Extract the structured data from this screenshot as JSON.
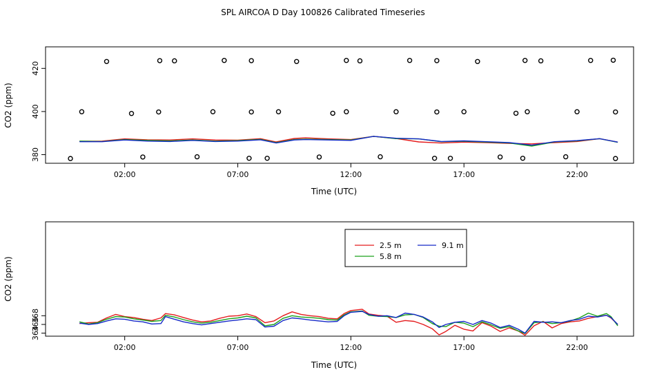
{
  "title": "SPL AIRCOA D  Day 100826  Calibrated Timeseries",
  "colors": {
    "s25": "#e41a1c",
    "s58": "#1aa01a",
    "s91": "#1428c8",
    "calib": "#000000"
  },
  "chart_data": [
    {
      "type": "line",
      "xlabel": "Time (UTC)",
      "ylabel": "CO2 (ppm)",
      "xlim": [
        -1.5,
        24.5
      ],
      "ylim": [
        376,
        430
      ],
      "xticks": [
        2,
        7,
        12,
        17,
        22
      ],
      "xtick_labels": [
        "02:00",
        "07:00",
        "12:00",
        "17:00",
        "22:00"
      ],
      "yticks": [
        380,
        400,
        420
      ],
      "ytick_labels": [
        "380",
        "400",
        "420"
      ],
      "series": [
        {
          "key": "s25",
          "x": [
            0,
            1,
            2,
            3,
            4,
            5,
            6,
            7,
            8,
            8.7,
            9.5,
            10,
            11,
            12,
            13,
            14,
            15,
            16,
            17,
            18,
            19,
            20,
            21,
            22,
            23,
            23.8
          ],
          "y": [
            386.2,
            386.3,
            387.3,
            386.9,
            386.8,
            387.3,
            386.8,
            386.7,
            387.4,
            385.9,
            387.5,
            387.8,
            387.3,
            387.0,
            388.5,
            387.5,
            385.9,
            385.4,
            385.8,
            385.6,
            385.2,
            385.0,
            385.6,
            386.1,
            387.4,
            385.8
          ]
        },
        {
          "key": "s58",
          "x": [
            0,
            1,
            2,
            3,
            4,
            5,
            6,
            7,
            8,
            8.7,
            9.5,
            10,
            11,
            12,
            13,
            14,
            15,
            16,
            17,
            18,
            19,
            20,
            21,
            22,
            23,
            23.8
          ],
          "y": [
            386.3,
            386.1,
            387.0,
            386.6,
            386.4,
            386.8,
            386.3,
            386.5,
            387.1,
            385.6,
            387.0,
            387.2,
            387.0,
            386.8,
            388.5,
            387.4,
            387.3,
            386.0,
            386.2,
            385.8,
            385.4,
            384.0,
            385.9,
            386.4,
            387.4,
            385.7
          ]
        },
        {
          "key": "s91",
          "x": [
            0,
            1,
            2,
            3,
            4,
            5,
            6,
            7,
            8,
            8.7,
            9.5,
            10,
            11,
            12,
            13,
            14,
            15,
            16,
            17,
            18,
            19,
            20,
            21,
            22,
            23,
            23.8
          ],
          "y": [
            386.0,
            386.0,
            386.8,
            386.3,
            386.1,
            386.6,
            386.1,
            386.3,
            386.9,
            385.4,
            386.8,
            387.0,
            386.8,
            386.6,
            388.5,
            387.6,
            387.3,
            386.1,
            386.4,
            386.0,
            385.6,
            384.4,
            386.0,
            386.5,
            387.4,
            385.8
          ]
        }
      ],
      "calibration_points": {
        "x": [
          -0.4,
          0.1,
          1.2,
          2.3,
          2.8,
          3.5,
          3.55,
          4.2,
          5.2,
          5.9,
          6.4,
          7.5,
          7.6,
          7.6,
          8.3,
          8.8,
          9.6,
          10.6,
          11.2,
          11.8,
          11.8,
          12.4,
          13.3,
          14.0,
          14.6,
          15.7,
          15.8,
          15.8,
          16.4,
          17.0,
          17.6,
          18.6,
          19.3,
          19.6,
          19.7,
          19.8,
          20.4,
          21.5,
          22.0,
          22.6,
          23.6,
          23.7,
          23.7
        ],
        "y": [
          378.2,
          399.9,
          423.2,
          399.1,
          378.9,
          399.8,
          423.6,
          423.5,
          379.0,
          399.9,
          423.7,
          378.3,
          423.6,
          399.8,
          378.3,
          399.9,
          423.2,
          378.9,
          399.2,
          423.7,
          399.9,
          423.5,
          379.0,
          399.9,
          423.7,
          378.3,
          423.6,
          399.8,
          378.3,
          399.9,
          423.2,
          378.9,
          399.2,
          378.3,
          423.7,
          399.9,
          423.5,
          379.0,
          399.9,
          423.7,
          423.8,
          399.8,
          378.2
        ]
      }
    },
    {
      "type": "line",
      "xlabel": "Time (UTC)",
      "ylabel": "CO2 (ppm)",
      "xlim": [
        -1.5,
        24.5
      ],
      "ylim": [
        363.3,
        389.6
      ],
      "xticks": [
        2,
        7,
        12,
        17,
        22
      ],
      "xtick_labels": [
        "02:00",
        "07:00",
        "12:00",
        "17:00",
        "22:00"
      ],
      "yticks": [
        364,
        366,
        368
      ],
      "ytick_labels": [
        "364",
        "366",
        "368"
      ],
      "legend": {
        "placement": "top-center",
        "entries": [
          {
            "key": "s25",
            "label": "2.5 m"
          },
          {
            "key": "s91",
            "label": "9.1 m"
          },
          {
            "key": "s58",
            "label": "5.8 m"
          }
        ]
      },
      "series": [
        {
          "key": "s25",
          "name": "2.5 m",
          "x": [
            0,
            0.4,
            0.8,
            1.2,
            1.6,
            2.0,
            2.4,
            2.8,
            3.2,
            3.6,
            3.8,
            4.2,
            4.6,
            5.0,
            5.4,
            5.8,
            6.2,
            6.6,
            7.0,
            7.4,
            7.8,
            8.2,
            8.6,
            9.0,
            9.4,
            9.8,
            10.2,
            10.6,
            11.0,
            11.4,
            11.7,
            12.0,
            12.5,
            12.8,
            13.2,
            13.6,
            14.0,
            14.4,
            14.8,
            15.2,
            15.6,
            15.9,
            16.2,
            16.6,
            17.0,
            17.4,
            17.8,
            18.2,
            18.6,
            19.0,
            19.4,
            19.7,
            20.1,
            20.5,
            20.9,
            21.3,
            21.7,
            22.1,
            22.5,
            22.9,
            23.3,
            23.5,
            23.8
          ],
          "y": [
            366.2,
            366.4,
            366.5,
            367.5,
            368.3,
            367.8,
            367.6,
            367.2,
            366.9,
            367.5,
            368.5,
            368.2,
            367.6,
            367.0,
            366.6,
            366.8,
            367.4,
            367.9,
            368.0,
            368.4,
            367.8,
            366.4,
            366.8,
            368.0,
            368.9,
            368.3,
            368.0,
            367.8,
            367.4,
            367.3,
            368.5,
            369.2,
            369.5,
            368.4,
            368.1,
            367.9,
            366.5,
            366.9,
            366.7,
            366.0,
            365.0,
            363.6,
            364.4,
            365.8,
            364.9,
            364.5,
            366.4,
            365.6,
            364.4,
            365.2,
            364.5,
            363.5,
            365.7,
            366.7,
            365.2,
            366.2,
            366.6,
            366.8,
            367.4,
            367.8,
            368.1,
            367.5,
            366.0
          ]
        },
        {
          "key": "s58",
          "name": "5.8 m",
          "x": [
            0,
            0.4,
            0.8,
            1.2,
            1.6,
            2.0,
            2.4,
            2.8,
            3.2,
            3.6,
            3.8,
            4.2,
            4.6,
            5.0,
            5.4,
            5.8,
            6.2,
            6.6,
            7.0,
            7.4,
            7.8,
            8.2,
            8.6,
            9.0,
            9.4,
            9.8,
            10.2,
            10.6,
            11.0,
            11.4,
            11.7,
            12.0,
            12.5,
            12.8,
            13.2,
            13.6,
            14.0,
            14.4,
            14.8,
            15.2,
            15.6,
            15.9,
            16.2,
            16.6,
            17.0,
            17.4,
            17.8,
            18.2,
            18.6,
            19.0,
            19.4,
            19.7,
            20.1,
            20.5,
            20.9,
            21.3,
            21.7,
            22.1,
            22.5,
            22.9,
            23.3,
            23.5,
            23.8
          ],
          "y": [
            366.6,
            366.1,
            366.4,
            367.2,
            367.8,
            367.7,
            367.3,
            367.0,
            366.7,
            366.9,
            368.1,
            367.7,
            367.1,
            366.6,
            366.3,
            366.5,
            366.9,
            367.3,
            367.5,
            367.9,
            367.5,
            365.7,
            366.0,
            367.4,
            368.0,
            367.7,
            367.6,
            367.4,
            367.1,
            367.0,
            368.2,
            368.9,
            369.1,
            368.1,
            367.9,
            367.8,
            367.6,
            368.2,
            368.3,
            367.6,
            366.2,
            365.6,
            365.5,
            366.5,
            366.3,
            365.5,
            366.6,
            365.9,
            365.1,
            365.5,
            364.5,
            363.9,
            366.4,
            366.6,
            366.2,
            366.4,
            366.8,
            367.5,
            368.6,
            367.9,
            368.5,
            367.8,
            365.7
          ]
        },
        {
          "key": "s91",
          "name": "9.1 m",
          "x": [
            0,
            0.4,
            0.8,
            1.2,
            1.6,
            2.0,
            2.4,
            2.8,
            3.2,
            3.6,
            3.8,
            4.2,
            4.6,
            5.0,
            5.4,
            5.8,
            6.2,
            6.6,
            7.0,
            7.4,
            7.8,
            8.2,
            8.6,
            9.0,
            9.4,
            9.8,
            10.2,
            10.6,
            11.0,
            11.4,
            11.7,
            12.0,
            12.5,
            12.8,
            13.2,
            13.6,
            14.0,
            14.4,
            14.8,
            15.2,
            15.6,
            15.9,
            16.2,
            16.6,
            17.0,
            17.4,
            17.8,
            18.2,
            18.6,
            19.0,
            19.4,
            19.7,
            20.1,
            20.5,
            20.9,
            21.3,
            21.7,
            22.1,
            22.5,
            22.9,
            23.3,
            23.5,
            23.8
          ],
          "y": [
            366.3,
            366.0,
            366.2,
            366.8,
            367.3,
            367.2,
            366.8,
            366.6,
            366.1,
            366.2,
            367.8,
            367.2,
            366.6,
            366.2,
            365.9,
            366.2,
            366.5,
            366.8,
            367.0,
            367.3,
            367.1,
            365.4,
            365.6,
            366.9,
            367.5,
            367.3,
            367.0,
            366.8,
            366.6,
            366.7,
            368.0,
            368.8,
            369.0,
            368.3,
            367.9,
            368.0,
            367.6,
            368.6,
            368.3,
            367.7,
            366.6,
            365.3,
            366.0,
            366.5,
            366.7,
            366.0,
            366.9,
            366.3,
            365.3,
            365.8,
            364.9,
            364.0,
            366.7,
            366.5,
            366.6,
            366.4,
            366.9,
            367.2,
            367.9,
            367.7,
            368.1,
            367.6,
            366.0
          ]
        }
      ]
    }
  ]
}
